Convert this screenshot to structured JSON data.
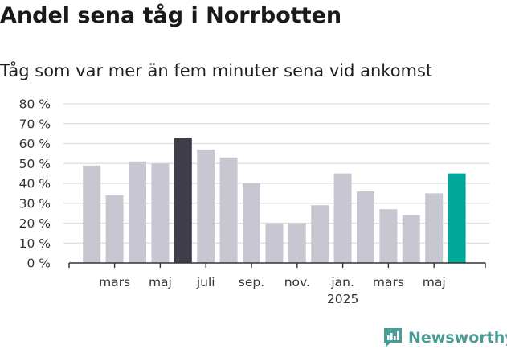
{
  "header": {
    "title": "Andel sena tåg i Norrbotten",
    "subtitle": "Tåg som var mer än fem minuter sena vid ankomst"
  },
  "brand": {
    "name": "Newsworthy",
    "icon": "newsworthy-logo-icon",
    "color": "#4a9a95"
  },
  "colors": {
    "bar_default": "#c8c6d1",
    "bar_highlight_dark": "#403e4a",
    "bar_highlight_teal": "#00a89a",
    "grid": "#dddddd",
    "axis": "#333333"
  },
  "chart_data": {
    "type": "bar",
    "title": "Andel sena tåg i Norrbotten",
    "subtitle": "Tåg som var mer än fem minuter sena vid ankomst",
    "ylim": [
      0,
      80
    ],
    "yticks": [
      0,
      10,
      20,
      30,
      40,
      50,
      60,
      70,
      80
    ],
    "ytick_labels": [
      "0 %",
      "10 %",
      "20 %",
      "30 %",
      "40 %",
      "50 %",
      "60 %",
      "70 %",
      "80 %"
    ],
    "grid": true,
    "categories": [
      "2024-02",
      "2024-03",
      "2024-04",
      "2024-05",
      "2024-06",
      "2024-07",
      "2024-08",
      "2024-09",
      "2024-10",
      "2024-11",
      "2024-12",
      "2025-01",
      "2025-02",
      "2025-03",
      "2025-04",
      "2025-05",
      "2025-06"
    ],
    "values": [
      49,
      34,
      51,
      50,
      63,
      57,
      53,
      40,
      20,
      20,
      29,
      45,
      36,
      27,
      24,
      35,
      45
    ],
    "highlight": {
      "2024-06": "dark",
      "2025-06": "teal"
    },
    "xtick_labels": [
      {
        "category": "2024-03",
        "label": "mars"
      },
      {
        "category": "2024-05",
        "label": "maj"
      },
      {
        "category": "2024-07",
        "label": "juli"
      },
      {
        "category": "2024-09",
        "label": "sep."
      },
      {
        "category": "2024-11",
        "label": "nov."
      },
      {
        "category": "2025-01",
        "label": "jan.",
        "sublabel": "2025"
      },
      {
        "category": "2025-03",
        "label": "mars"
      },
      {
        "category": "2025-05",
        "label": "maj"
      }
    ]
  }
}
